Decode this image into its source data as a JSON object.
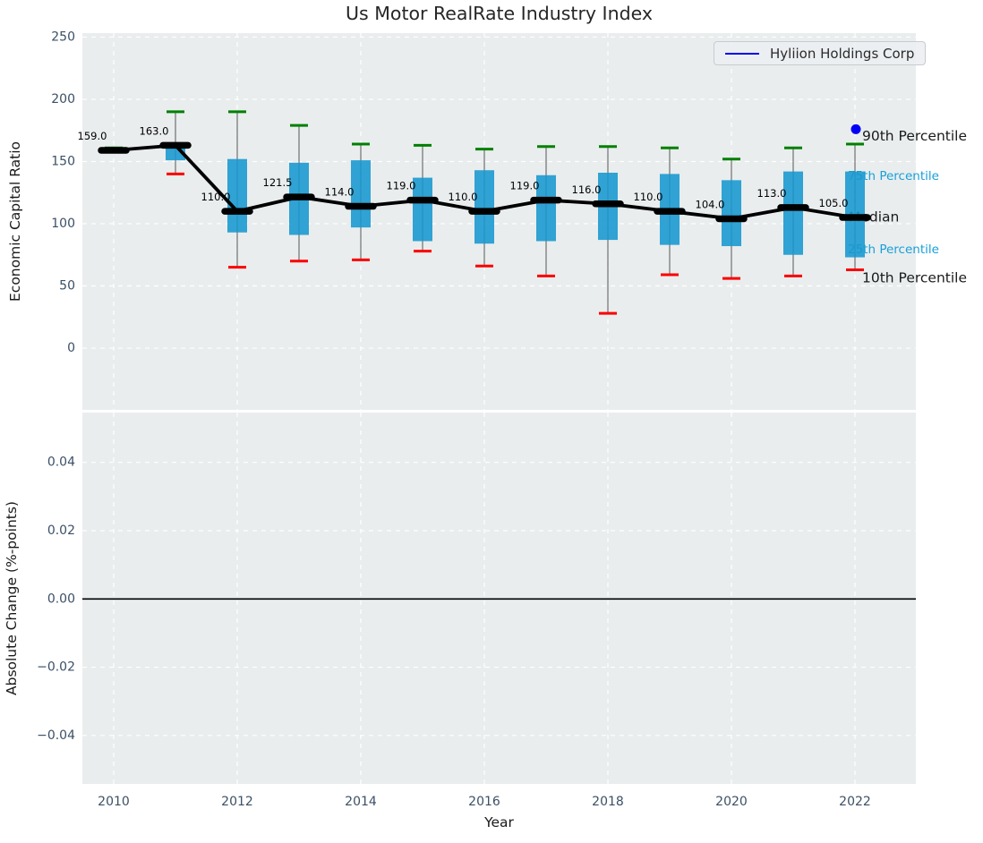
{
  "title": "Us Motor RealRate Industry Index",
  "legend": {
    "label": "Hyliion Holdings Corp",
    "line_color": "#0000ee"
  },
  "colors": {
    "axes_bg": "#e9edee",
    "grid": "#ffffff",
    "box_fill": "#1697cf",
    "whisker": "#7a7a7a",
    "cap_high": "#008000",
    "cap_low": "#fb0000",
    "median": "#000000",
    "trend": "#000000",
    "marker": "#0000f5",
    "tick_text": "#3c5066",
    "title_text": "#262626",
    "annotation_black": "#1a1a1a",
    "annotation_cyan": "#18a0d8",
    "zero_line": "#000000"
  },
  "chart_data": [
    {
      "type": "boxplot+line",
      "title": "Us Motor RealRate Industry Index",
      "ylabel": "Economic Capital Ratio",
      "ylim": [
        -49.6,
        253.2
      ],
      "ytick_values": [
        0,
        50,
        100,
        150,
        200,
        250
      ],
      "ytick_labels": [
        "0",
        "50",
        "100",
        "150",
        "200",
        "250"
      ],
      "xtick_values": [
        2010,
        2012,
        2014,
        2016,
        2018,
        2020,
        2022
      ],
      "xtick_labels": [
        "2010",
        "2012",
        "2014",
        "2016",
        "2018",
        "2020",
        "2022"
      ],
      "grid": true,
      "legend_position": "upper right",
      "series_name": "Industry median (Economic Capital Ratio)",
      "boxes": [
        {
          "year": 2010,
          "median": 159,
          "label": "159.0",
          "q1": null,
          "q3": null,
          "p10": null,
          "p90": 161
        },
        {
          "year": 2011,
          "median": 163,
          "label": "163.0",
          "q1": 151,
          "q3": 163,
          "p10": 140,
          "p90": 190
        },
        {
          "year": 2012,
          "median": 110,
          "label": "110.0",
          "q1": 93,
          "q3": 152,
          "p10": 65,
          "p90": 190
        },
        {
          "year": 2013,
          "median": 121.5,
          "label": "121.5",
          "q1": 91,
          "q3": 149,
          "p10": 70,
          "p90": 179
        },
        {
          "year": 2014,
          "median": 114,
          "label": "114.0",
          "q1": 97,
          "q3": 151,
          "p10": 71,
          "p90": 164
        },
        {
          "year": 2015,
          "median": 119,
          "label": "119.0",
          "q1": 86,
          "q3": 137,
          "p10": 78,
          "p90": 163
        },
        {
          "year": 2016,
          "median": 110,
          "label": "110.0",
          "q1": 84,
          "q3": 143,
          "p10": 66,
          "p90": 160
        },
        {
          "year": 2017,
          "median": 119,
          "label": "119.0",
          "q1": 86,
          "q3": 139,
          "p10": 58,
          "p90": 162
        },
        {
          "year": 2018,
          "median": 116,
          "label": "116.0",
          "q1": 87,
          "q3": 141,
          "p10": 28,
          "p90": 162
        },
        {
          "year": 2019,
          "median": 110,
          "label": "110.0",
          "q1": 83,
          "q3": 140,
          "p10": 59,
          "p90": 161
        },
        {
          "year": 2020,
          "median": 104,
          "label": "104.0",
          "q1": 82,
          "q3": 135,
          "p10": 56,
          "p90": 152
        },
        {
          "year": 2021,
          "median": 113,
          "label": "113.0",
          "q1": 75,
          "q3": 142,
          "p10": 58,
          "p90": 161
        },
        {
          "year": 2022,
          "median": 105,
          "label": "105.0",
          "q1": 73,
          "q3": 142,
          "p10": 63,
          "p90": 164
        }
      ],
      "marker_point": {
        "name": "Hyliion Holdings Corp",
        "x": 2022,
        "y": 176
      },
      "annotations": [
        {
          "text": "90th Percentile",
          "value": 170.5,
          "x": 963,
          "color": "#1a1a1a",
          "size": 15.5
        },
        {
          "text": "75th Percentile",
          "value": 138,
          "x": 947,
          "color": "#18a0d8",
          "size": 13.5
        },
        {
          "text": "Median",
          "value": 105.5,
          "x": 948,
          "color": "#1a1a1a",
          "size": 15.5
        },
        {
          "text": "25th Percentile",
          "value": 79,
          "x": 947,
          "color": "#18a0d8",
          "size": 13.5
        },
        {
          "text": "10th Percentile",
          "value": 56.5,
          "x": 963,
          "color": "#1a1a1a",
          "size": 15.5
        }
      ]
    },
    {
      "type": "line",
      "ylabel": "Absolute Change (%-points)",
      "xlabel": "Year",
      "ylim": [
        -0.0542,
        0.0546
      ],
      "ytick_values": [
        0.04,
        0.02,
        0,
        -0.02,
        -0.04
      ],
      "ytick_labels": [
        "0.04",
        "0.02",
        "0.00",
        "−0.02",
        "−0.04"
      ],
      "xtick_values": [
        2010,
        2012,
        2014,
        2016,
        2018,
        2020,
        2022
      ],
      "xtick_labels": [
        "2010",
        "2012",
        "2014",
        "2016",
        "2018",
        "2020",
        "2022"
      ],
      "grid": true,
      "zero_line": 0.0,
      "series": []
    }
  ]
}
